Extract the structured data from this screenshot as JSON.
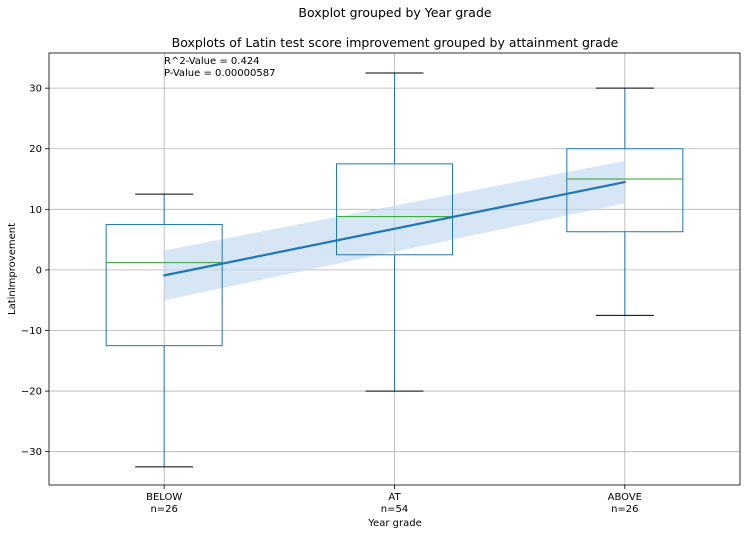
{
  "chart_data": {
    "type": "box",
    "suptitle": "Boxplot grouped by Year grade",
    "title": "Boxplots of Latin test score improvement grouped by attainment grade",
    "xlabel": "Year grade",
    "ylabel": "LatinImprovement",
    "ylim": [
      -35.5,
      35.8
    ],
    "yticks": [
      -30,
      -20,
      -10,
      0,
      10,
      20,
      30
    ],
    "ytick_labels": [
      "−30",
      "−20",
      "−10",
      "0",
      "10",
      "20",
      "30"
    ],
    "grid": true,
    "categories": [
      {
        "label": "BELOW",
        "n_label": "n=26"
      },
      {
        "label": "AT",
        "n_label": "n=54"
      },
      {
        "label": "ABOVE",
        "n_label": "n=26"
      }
    ],
    "boxes": [
      {
        "category": "BELOW",
        "whisker_low": -32.5,
        "q1": -12.5,
        "median": 1.2,
        "q3": 7.5,
        "whisker_high": 12.5
      },
      {
        "category": "AT",
        "whisker_low": -20,
        "q1": 2.5,
        "median": 8.8,
        "q3": 17.5,
        "whisker_high": 32.5
      },
      {
        "category": "ABOVE",
        "whisker_low": -7.5,
        "q1": 6.3,
        "median": 15.0,
        "q3": 20.0,
        "whisker_high": 30.0
      }
    ],
    "regression": {
      "x": [
        1,
        3
      ],
      "y": [
        -0.9,
        14.5
      ],
      "ci_lower": [
        -5.0,
        11.0
      ],
      "ci_upper": [
        3.2,
        18.0
      ]
    },
    "annotations": [
      "R^2-Value = 0.424",
      "P-Value = 0.00000587"
    ],
    "colors": {
      "box": "#1f77b4",
      "median": "#2ca02c",
      "whisker_cap": "#000000",
      "regression_line": "#1f77b4",
      "ci_band": "#c6dbef",
      "grid": "#b0b0b0"
    }
  }
}
